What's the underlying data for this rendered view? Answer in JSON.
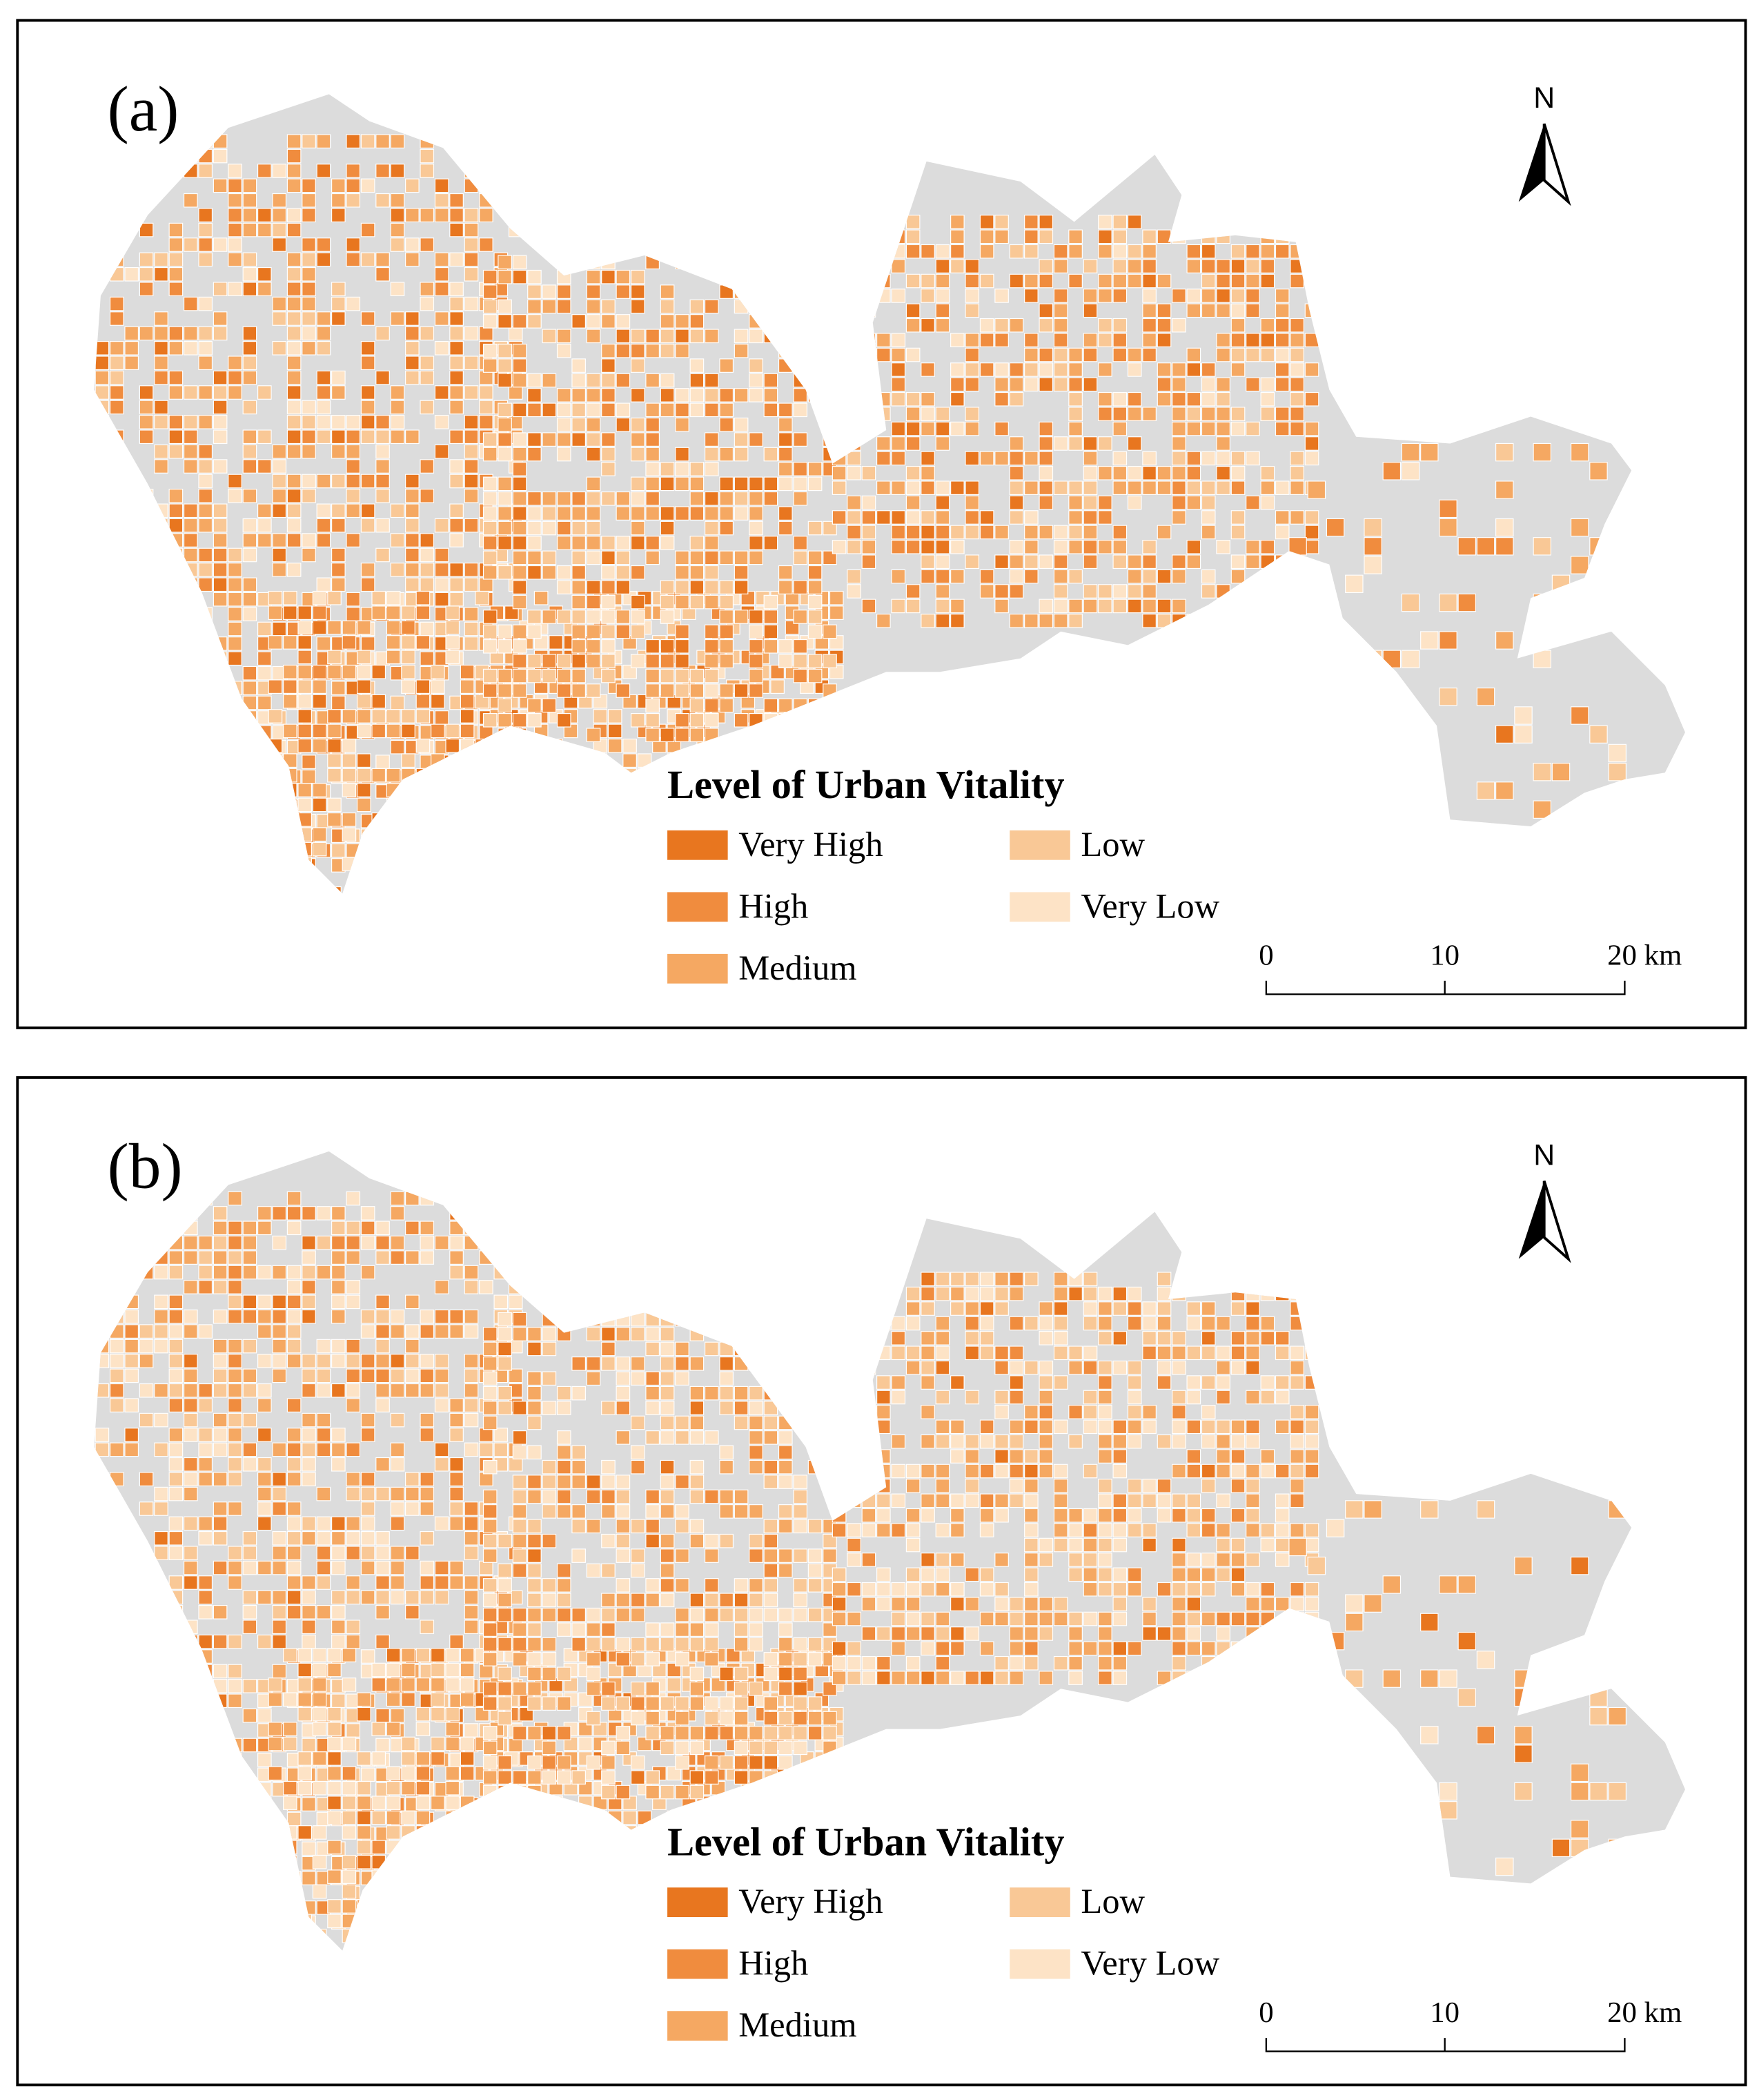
{
  "panels": [
    {
      "label": "(a)",
      "north": "N",
      "legend": {
        "title": "Level of Urban Vitality",
        "items": [
          {
            "label": "Very High",
            "color": "#e8761f"
          },
          {
            "label": "High",
            "color": "#f08c3e"
          },
          {
            "label": "Medium",
            "color": "#f5a862"
          },
          {
            "label": "Low",
            "color": "#f9c896"
          },
          {
            "label": "Very Low",
            "color": "#fde3c6"
          }
        ]
      },
      "scale": [
        "0",
        "10",
        "20 km"
      ]
    },
    {
      "label": "(b)",
      "north": "N",
      "legend": {
        "title": "Level of Urban Vitality",
        "items": [
          {
            "label": "Very High",
            "color": "#e8761f"
          },
          {
            "label": "High",
            "color": "#f08c3e"
          },
          {
            "label": "Medium",
            "color": "#f5a862"
          },
          {
            "label": "Low",
            "color": "#f9c896"
          },
          {
            "label": "Very Low",
            "color": "#fde3c6"
          }
        ]
      },
      "scale": [
        "0",
        "10",
        "20 km"
      ]
    }
  ]
}
